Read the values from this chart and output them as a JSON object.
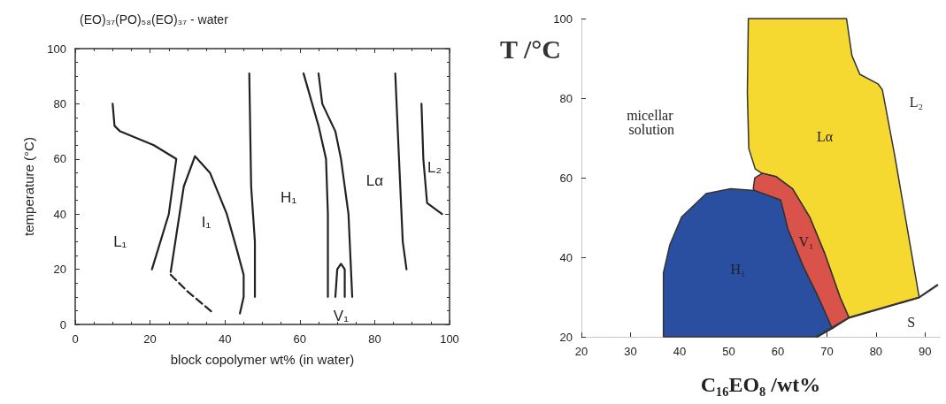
{
  "chart_data": [
    {
      "type": "line",
      "title": "(EO)₃₇(PO)₅₈(EO)₃₇ - water",
      "xlabel": "block copolymer wt% (in water)",
      "ylabel": "temperature (°C)",
      "xlim": [
        0,
        100
      ],
      "xticks": [
        0,
        20,
        40,
        60,
        80,
        100
      ],
      "ylim": [
        0,
        100
      ],
      "yticks": [
        0,
        20,
        40,
        60,
        80,
        100
      ],
      "grid": false,
      "marker": "none",
      "series": [
        {
          "color": "#222222",
          "x": [
            10,
            10.5,
            12,
            21,
            27,
            25,
            20.5
          ],
          "values": [
            80,
            72,
            70,
            65,
            60,
            40,
            20
          ]
        },
        {
          "color": "#222222",
          "x": [
            25.5,
            29,
            32,
            36,
            40.5,
            43,
            45,
            45,
            44
          ],
          "values": [
            19,
            50,
            61,
            55,
            40,
            28,
            18,
            10,
            4
          ]
        },
        {
          "color": "#222222",
          "line_style": "dashed",
          "x": [
            25.5,
            30,
            37
          ],
          "values": [
            18,
            12,
            4
          ]
        },
        {
          "color": "#222222",
          "x": [
            46.5,
            47,
            48,
            48
          ],
          "values": [
            91,
            50,
            30,
            10
          ]
        },
        {
          "color": "#222222",
          "x": [
            61,
            65,
            67,
            67.5,
            67.5
          ],
          "values": [
            91,
            72,
            60,
            40,
            10
          ]
        },
        {
          "color": "#222222",
          "x": [
            65,
            66,
            69.5,
            71,
            73,
            74
          ],
          "values": [
            91,
            80,
            70,
            60,
            40,
            10
          ]
        },
        {
          "color": "#222222",
          "x": [
            69.5,
            70,
            71,
            72,
            72
          ],
          "values": [
            10,
            20,
            22,
            20,
            10
          ]
        },
        {
          "color": "#222222",
          "x": [
            85.5,
            86.5,
            87.5,
            88.5
          ],
          "values": [
            91,
            60,
            30,
            20
          ]
        },
        {
          "color": "#222222",
          "x": [
            92.5,
            93,
            94,
            98
          ],
          "values": [
            80,
            60,
            44,
            40
          ]
        }
      ],
      "annotations": [
        "L₁",
        "I₁",
        "H₁",
        "Lα",
        "L₂",
        "V₁"
      ]
    },
    {
      "type": "area",
      "xlabel": "C₁₆EO₈ /wt%",
      "ylabel": "T /°C",
      "xlim": [
        20,
        93
      ],
      "xticks": [
        20,
        30,
        40,
        50,
        60,
        70,
        80,
        90
      ],
      "ylim": [
        20,
        100
      ],
      "yticks": [
        20,
        40,
        60,
        80,
        100
      ],
      "grid": false,
      "series": [
        {
          "color": "#f5d830",
          "x": [
            54,
            74,
            75.1,
            76.7,
            80.4,
            81.3,
            83.8,
            88.8,
            74.5,
            72.7,
            69.6,
            66.5,
            63,
            59.6,
            56.8,
            55.4,
            54.1,
            53.8
          ],
          "values": [
            100,
            100,
            90.7,
            86,
            83.6,
            82.1,
            65.7,
            29.9,
            24.8,
            29.9,
            40.8,
            50.1,
            57.2,
            60.3,
            61.1,
            62.2,
            67.3,
            81.3
          ]
        },
        {
          "color": "#2a4fa0",
          "x": [
            36.7,
            36.7,
            38,
            40.4,
            45.4,
            50.4,
            55.3,
            60.6,
            62.1,
            65.2,
            68.3,
            71.1,
            68
          ],
          "values": [
            20,
            36.1,
            43.1,
            50.1,
            56,
            57.2,
            56.8,
            54.4,
            47,
            37.7,
            29.9,
            22.1,
            20
          ]
        },
        {
          "color": "#d9534a",
          "x": [
            55,
            55.3,
            56.8,
            59.6,
            63,
            66.5,
            69.6,
            72.7,
            74.5,
            71.1,
            68.3,
            65.2,
            62.1,
            60.6,
            55.3
          ],
          "values": [
            57.2,
            59.9,
            61.1,
            60.3,
            57.2,
            50.1,
            40.8,
            29.9,
            24.8,
            22.1,
            29.9,
            37.7,
            47,
            54.4,
            56.8
          ]
        },
        {
          "type": "line",
          "color": "#333333",
          "x": [
            68,
            74.5,
            88.8,
            92.5
          ],
          "values": [
            20,
            24.8,
            29.9,
            33
          ]
        }
      ],
      "annotations": [
        "micellar solution",
        "Lα",
        "L₂",
        "V₁",
        "H₁",
        "S"
      ]
    }
  ]
}
